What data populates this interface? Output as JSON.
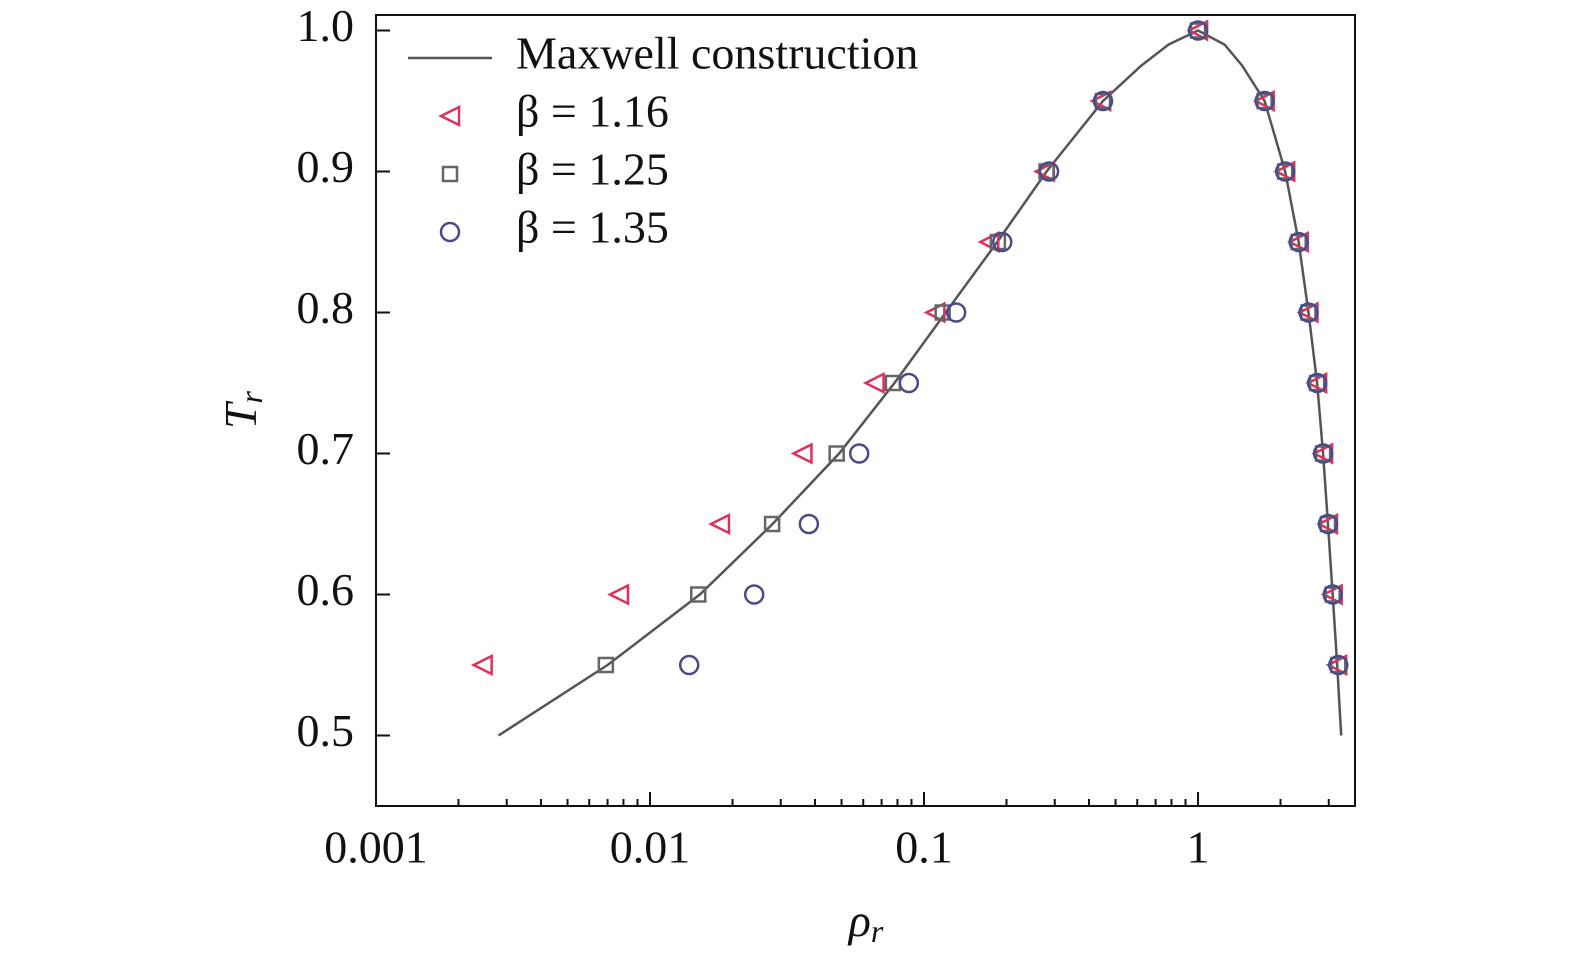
{
  "chart_data": {
    "type": "scatter",
    "xscale": "log",
    "xlabel": {
      "text": "ρ",
      "sub": "r"
    },
    "ylabel": {
      "text": "T",
      "sub": "r"
    },
    "xlim": [
      0.001,
      3.74
    ],
    "ylim": [
      0.45,
      1.011
    ],
    "xticks": [
      0.001,
      0.01,
      0.1,
      1
    ],
    "xminorticks": [
      0.002,
      0.003,
      0.004,
      0.005,
      0.006,
      0.007,
      0.008,
      0.009,
      0.02,
      0.03,
      0.04,
      0.05,
      0.06,
      0.07,
      0.08,
      0.09,
      0.2,
      0.3,
      0.4,
      0.5,
      0.6,
      0.7,
      0.8,
      0.9,
      2,
      3
    ],
    "yticks": [
      0.5,
      0.6,
      0.7,
      0.8,
      0.9,
      {
        "value": 1,
        "label": "1.0"
      }
    ],
    "legend": "upper left",
    "series": [
      {
        "name": "Maxwell construction",
        "mode": "line",
        "color": "#555555",
        "x": [
          0.0028,
          0.007,
          0.0152,
          0.028,
          0.049,
          0.078,
          0.12,
          0.185,
          0.28,
          0.45,
          0.62,
          0.78,
          1,
          1.25,
          1.45,
          1.75,
          2.08,
          2.33,
          2.53,
          2.72,
          2.86,
          2.98,
          3.1,
          3.22,
          3.33
        ],
        "values": [
          0.5,
          0.55,
          0.6,
          0.65,
          0.7,
          0.75,
          0.8,
          0.85,
          0.9,
          0.95,
          0.975,
          0.99,
          1,
          0.99,
          0.975,
          0.95,
          0.9,
          0.85,
          0.8,
          0.75,
          0.7,
          0.65,
          0.6,
          0.55,
          0.5
        ]
      },
      {
        "name": "β = 1.16",
        "mode": "markers",
        "marker": "triangle-left",
        "color": "#e0305a",
        "x": [
          0.00245,
          0.0077,
          0.018,
          0.036,
          0.066,
          0.11,
          0.173,
          0.276,
          0.443,
          1,
          1.75,
          2.08,
          2.33,
          2.53,
          2.72,
          2.86,
          2.98,
          3.1,
          3.22
        ],
        "values": [
          0.55,
          0.6,
          0.65,
          0.7,
          0.75,
          0.8,
          0.85,
          0.9,
          0.95,
          1,
          0.95,
          0.9,
          0.85,
          0.8,
          0.75,
          0.7,
          0.65,
          0.6,
          0.55
        ]
      },
      {
        "name": "β = 1.25",
        "mode": "markers",
        "marker": "square",
        "color": "#666666",
        "x": [
          0.0069,
          0.015,
          0.0279,
          0.048,
          0.077,
          0.117,
          0.186,
          0.28,
          0.45,
          1,
          1.75,
          2.08,
          2.33,
          2.53,
          2.72,
          2.86,
          2.98,
          3.1,
          3.25
        ],
        "values": [
          0.55,
          0.6,
          0.65,
          0.7,
          0.75,
          0.8,
          0.85,
          0.9,
          0.95,
          1,
          0.95,
          0.9,
          0.85,
          0.8,
          0.75,
          0.7,
          0.65,
          0.6,
          0.55
        ]
      },
      {
        "name": "β = 1.35",
        "mode": "markers",
        "marker": "circle",
        "color": "#4a4a8a",
        "x": [
          0.0139,
          0.024,
          0.038,
          0.058,
          0.088,
          0.131,
          0.193,
          0.286,
          0.45,
          1,
          1.75,
          2.08,
          2.33,
          2.53,
          2.72,
          2.86,
          2.98,
          3.1,
          3.25
        ],
        "values": [
          0.55,
          0.6,
          0.65,
          0.7,
          0.75,
          0.8,
          0.85,
          0.9,
          0.95,
          1,
          0.95,
          0.9,
          0.85,
          0.8,
          0.75,
          0.7,
          0.65,
          0.6,
          0.55
        ]
      }
    ]
  }
}
